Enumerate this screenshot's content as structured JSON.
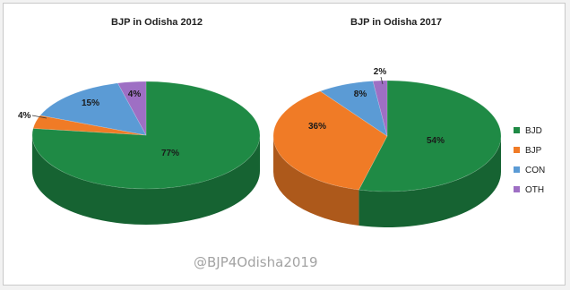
{
  "watermark": "@BJP4Odisha2019",
  "chart_data": [
    {
      "type": "pie",
      "title": "BJP in Odisha 2012",
      "categories": [
        "BJD",
        "BJP",
        "CON",
        "OTH"
      ],
      "values": [
        77,
        4,
        15,
        4
      ],
      "labels": [
        "77%",
        "4%",
        "15%",
        "4%"
      ]
    },
    {
      "type": "pie",
      "title": "BJP in Odisha 2017",
      "categories": [
        "BJD",
        "BJP",
        "CON",
        "OTH"
      ],
      "values": [
        54,
        36,
        8,
        2
      ],
      "labels": [
        "54%",
        "36%",
        "8%",
        "2%"
      ]
    }
  ],
  "legend": {
    "placement": "right",
    "items": [
      {
        "label": "BJD",
        "color": "#1f8a45"
      },
      {
        "label": "BJP",
        "color": "#f07b26"
      },
      {
        "label": "CON",
        "color": "#5b9bd5"
      },
      {
        "label": "OTH",
        "color": "#9e6fc4"
      }
    ]
  },
  "colors": {
    "BJD": "#1f8a45",
    "BJP": "#f07b26",
    "CON": "#5b9bd5",
    "OTH": "#9e6fc4"
  }
}
